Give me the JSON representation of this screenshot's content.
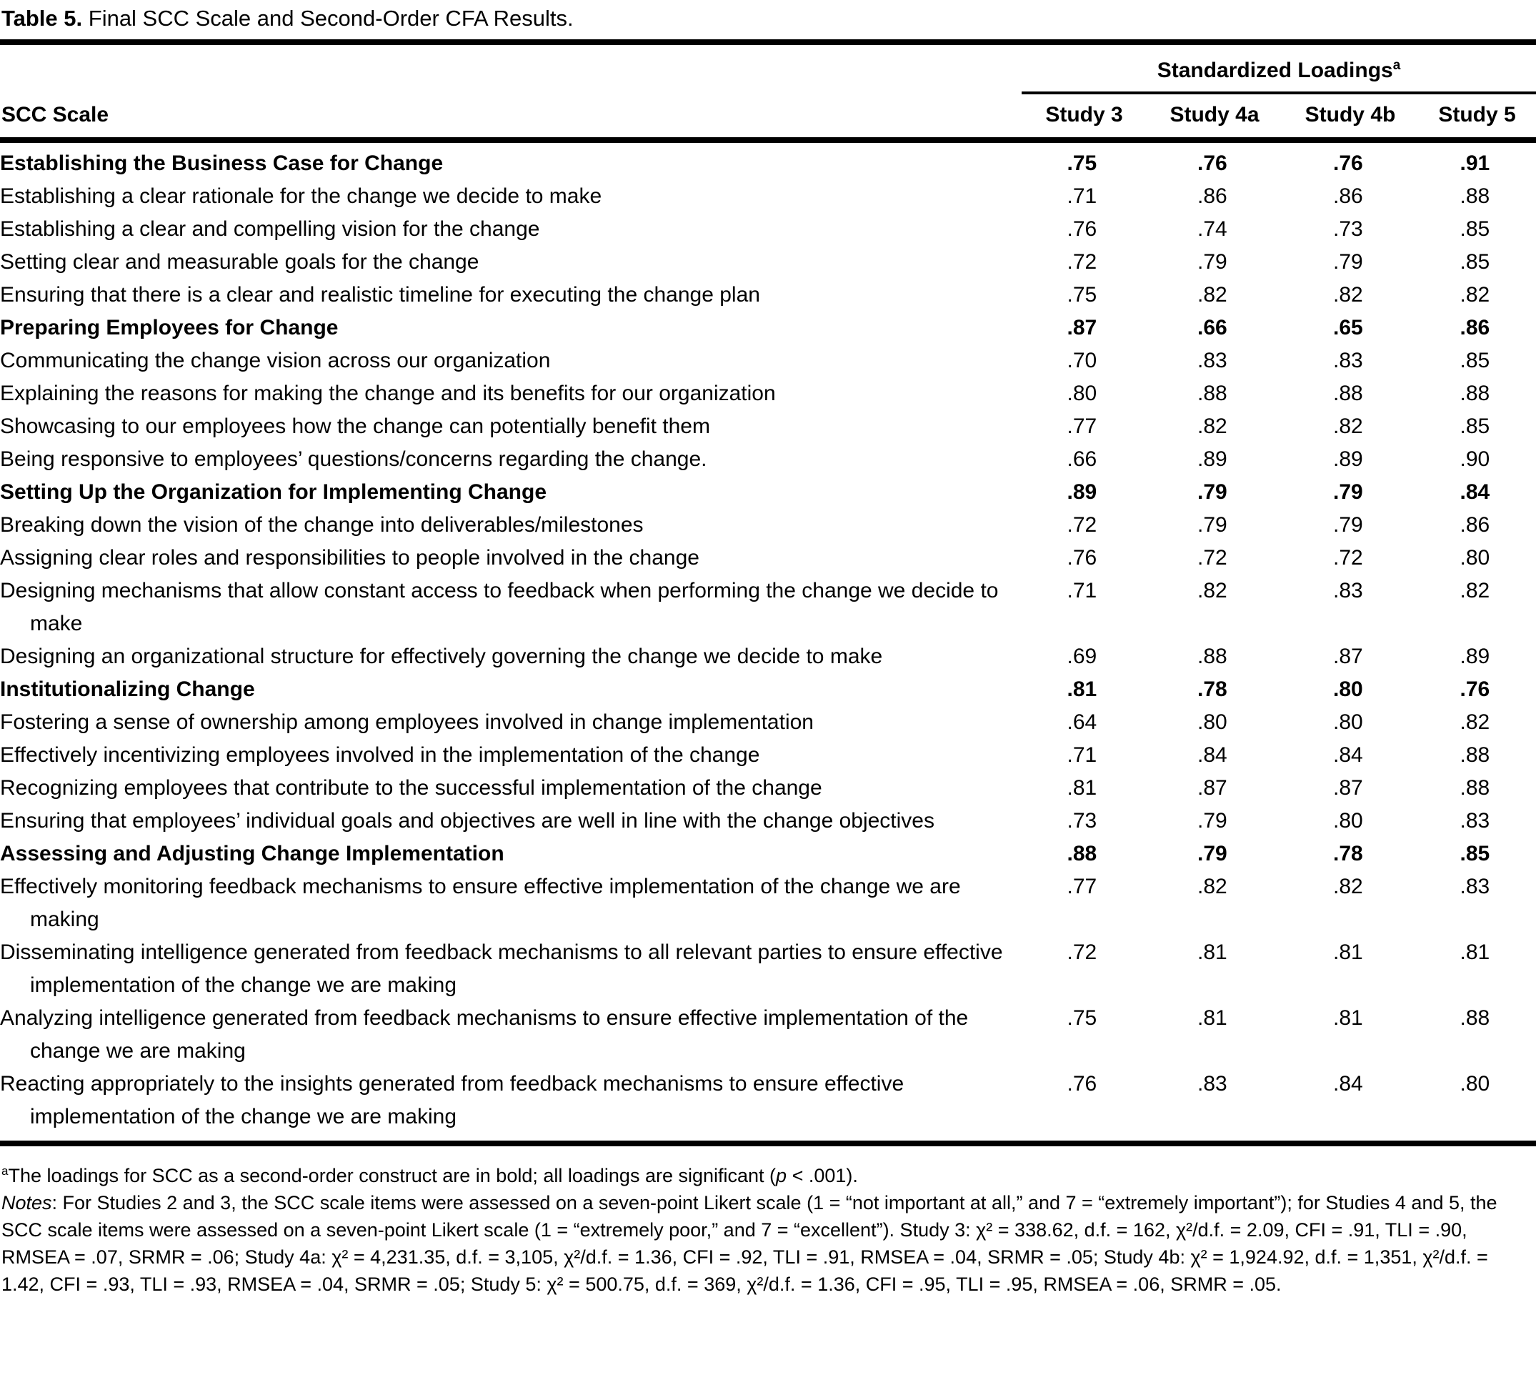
{
  "table": {
    "title_label": "Table 5.",
    "title_text": " Final SCC Scale and Second-Order CFA Results.",
    "col_group_header": "Standardized Loadings",
    "col_group_sup": "a",
    "row_header": "SCC Scale",
    "columns": [
      "Study 3",
      "Study 4a",
      "Study 4b",
      "Study 5"
    ],
    "rows": [
      {
        "bold": true,
        "label": "Establishing the Business Case for Change",
        "values": [
          ".75",
          ".76",
          ".76",
          ".91"
        ]
      },
      {
        "bold": false,
        "label": "Establishing a clear rationale for the change we decide to make",
        "values": [
          ".71",
          ".86",
          ".86",
          ".88"
        ]
      },
      {
        "bold": false,
        "label": "Establishing a clear and compelling vision for the change",
        "values": [
          ".76",
          ".74",
          ".73",
          ".85"
        ]
      },
      {
        "bold": false,
        "label": "Setting clear and measurable goals for the change",
        "values": [
          ".72",
          ".79",
          ".79",
          ".85"
        ]
      },
      {
        "bold": false,
        "label": "Ensuring that there is a clear and realistic timeline for executing the change plan",
        "values": [
          ".75",
          ".82",
          ".82",
          ".82"
        ]
      },
      {
        "bold": true,
        "label": "Preparing Employees for Change",
        "values": [
          ".87",
          ".66",
          ".65",
          ".86"
        ]
      },
      {
        "bold": false,
        "label": "Communicating the change vision across our organization",
        "values": [
          ".70",
          ".83",
          ".83",
          ".85"
        ]
      },
      {
        "bold": false,
        "label": "Explaining the reasons for making the change and its benefits for our organization",
        "values": [
          ".80",
          ".88",
          ".88",
          ".88"
        ]
      },
      {
        "bold": false,
        "label": "Showcasing to our employees how the change can potentially benefit them",
        "values": [
          ".77",
          ".82",
          ".82",
          ".85"
        ]
      },
      {
        "bold": false,
        "label": "Being responsive to employees’ questions/concerns regarding the change.",
        "values": [
          ".66",
          ".89",
          ".89",
          ".90"
        ]
      },
      {
        "bold": true,
        "label": "Setting Up the Organization for Implementing Change",
        "values": [
          ".89",
          ".79",
          ".79",
          ".84"
        ]
      },
      {
        "bold": false,
        "label": "Breaking down the vision of the change into deliverables/milestones",
        "values": [
          ".72",
          ".79",
          ".79",
          ".86"
        ]
      },
      {
        "bold": false,
        "label": "Assigning clear roles and responsibilities to people involved in the change",
        "values": [
          ".76",
          ".72",
          ".72",
          ".80"
        ]
      },
      {
        "bold": false,
        "label": "Designing mechanisms that allow constant access to feedback when performing the change we decide to make",
        "values": [
          ".71",
          ".82",
          ".83",
          ".82"
        ]
      },
      {
        "bold": false,
        "label": "Designing an organizational structure for effectively governing the change we decide to make",
        "values": [
          ".69",
          ".88",
          ".87",
          ".89"
        ]
      },
      {
        "bold": true,
        "label": "Institutionalizing Change",
        "values": [
          ".81",
          ".78",
          ".80",
          ".76"
        ]
      },
      {
        "bold": false,
        "label": "Fostering a sense of ownership among employees involved in change implementation",
        "values": [
          ".64",
          ".80",
          ".80",
          ".82"
        ]
      },
      {
        "bold": false,
        "label": "Effectively incentivizing employees involved in the implementation of the change",
        "values": [
          ".71",
          ".84",
          ".84",
          ".88"
        ]
      },
      {
        "bold": false,
        "label": "Recognizing employees that contribute to the successful implementation of the change",
        "values": [
          ".81",
          ".87",
          ".87",
          ".88"
        ]
      },
      {
        "bold": false,
        "label": "Ensuring that employees’ individual goals and objectives are well in line with the change objectives",
        "values": [
          ".73",
          ".79",
          ".80",
          ".83"
        ]
      },
      {
        "bold": true,
        "label": "Assessing and Adjusting Change Implementation",
        "values": [
          ".88",
          ".79",
          ".78",
          ".85"
        ]
      },
      {
        "bold": false,
        "label": "Effectively monitoring feedback mechanisms to ensure effective implementation of the change we are making",
        "values": [
          ".77",
          ".82",
          ".82",
          ".83"
        ]
      },
      {
        "bold": false,
        "label": "Disseminating intelligence generated from feedback mechanisms to all relevant parties to ensure effective implementation of the change we are making",
        "values": [
          ".72",
          ".81",
          ".81",
          ".81"
        ]
      },
      {
        "bold": false,
        "label": "Analyzing intelligence generated from feedback mechanisms to ensure effective implementation of the change we are making",
        "values": [
          ".75",
          ".81",
          ".81",
          ".88"
        ]
      },
      {
        "bold": false,
        "label": "Reacting appropriately to the insights generated from feedback mechanisms to ensure effective implementation of the change we are making",
        "values": [
          ".76",
          ".83",
          ".84",
          ".80"
        ]
      }
    ]
  },
  "footnotes": {
    "a_sup": "a",
    "a_pre": "The loadings for SCC as a second-order construct are in bold; all loadings are significant (",
    "a_italic": "p",
    "a_post": " < .001).",
    "notes_label": "Notes",
    "notes_text": ": For Studies 2 and 3, the SCC scale items were assessed on a seven-point Likert scale (1 = “not important at all,” and 7 = “extremely important”); for Studies 4 and 5, the SCC scale items were assessed on a seven-point Likert scale (1 = “extremely poor,” and 7 = “excellent”). Study 3: χ² = 338.62, d.f. = 162, χ²/d.f. = 2.09, CFI = .91, TLI = .90, RMSEA = .07, SRMR = .06; Study 4a: χ² = 4,231.35, d.f. = 3,105, χ²/d.f. = 1.36, CFI = .92, TLI = .91, RMSEA = .04, SRMR = .05; Study 4b: χ² = 1,924.92, d.f. = 1,351, χ²/d.f. = 1.42, CFI = .93, TLI = .93, RMSEA = .04, SRMR = .05; Study 5: χ² = 500.75, d.f. = 369, χ²/d.f. = 1.36, CFI = .95, TLI = .95, RMSEA = .06, SRMR = .05."
  }
}
